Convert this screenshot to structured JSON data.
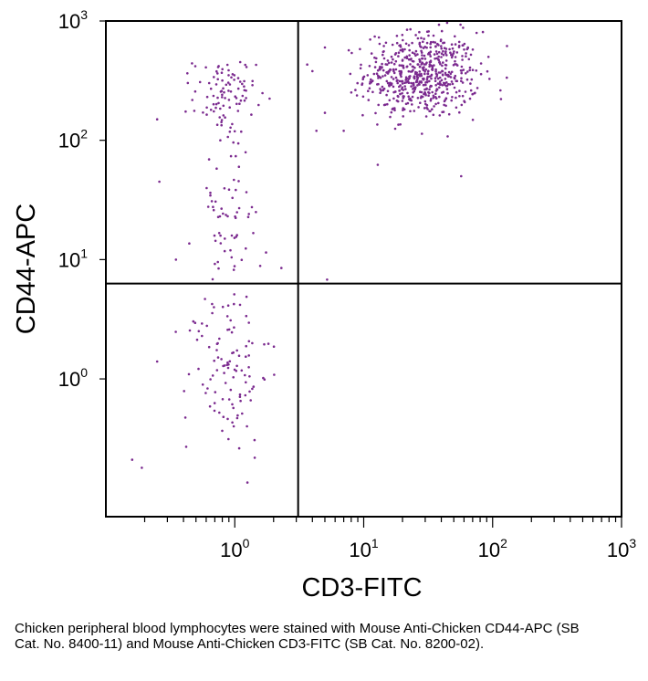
{
  "chart_data": {
    "type": "scatter",
    "xlabel": "CD3-FITC",
    "ylabel": "CD44-APC",
    "x_scale": "log",
    "y_scale": "log",
    "xlim": [
      0.1,
      1000
    ],
    "ylim": [
      0.07,
      1000
    ],
    "x_ticks": [
      {
        "value": 1,
        "base": "10",
        "exp": "0"
      },
      {
        "value": 10,
        "base": "10",
        "exp": "1"
      },
      {
        "value": 100,
        "base": "10",
        "exp": "2"
      },
      {
        "value": 1000,
        "base": "10",
        "exp": "3"
      }
    ],
    "y_ticks": [
      {
        "value": 1,
        "base": "10",
        "exp": "0"
      },
      {
        "value": 10,
        "base": "10",
        "exp": "1"
      },
      {
        "value": 100,
        "base": "10",
        "exp": "2"
      },
      {
        "value": 1000,
        "base": "10",
        "exp": "3"
      }
    ],
    "quadrant_gates": {
      "x": 3.1,
      "y": 6.3
    },
    "point_color": "#7b2a8f",
    "line_color": "#000000",
    "populations": [
      {
        "x_center_log": 1.45,
        "y_center_log": 2.55,
        "x_spread_log": 0.22,
        "y_spread_log": 0.18,
        "count": 620
      },
      {
        "x_center_log": -0.08,
        "y_center_log": 2.38,
        "x_spread_log": 0.12,
        "y_spread_log": 0.16,
        "count": 90
      },
      {
        "x_center_log": -0.05,
        "y_center_log": 1.35,
        "x_spread_log": 0.13,
        "y_spread_log": 0.45,
        "count": 80
      },
      {
        "x_center_log": -0.05,
        "y_center_log": 0.05,
        "x_spread_log": 0.16,
        "y_spread_log": 0.35,
        "count": 100
      }
    ],
    "outliers": [
      {
        "x": 0.16,
        "y": 0.21
      },
      {
        "x": 0.19,
        "y": 0.18
      },
      {
        "x": 0.25,
        "y": 1.4
      },
      {
        "x": 0.26,
        "y": 45
      },
      {
        "x": 0.25,
        "y": 150
      },
      {
        "x": 5.2,
        "y": 6.8
      },
      {
        "x": 5.0,
        "y": 600
      },
      {
        "x": 4.0,
        "y": 380
      },
      {
        "x": 4.3,
        "y": 120
      },
      {
        "x": 7.0,
        "y": 120
      },
      {
        "x": 57,
        "y": 50
      },
      {
        "x": 5.0,
        "y": 170
      },
      {
        "x": 0.42,
        "y": 0.27
      },
      {
        "x": 0.35,
        "y": 10
      },
      {
        "x": 2.3,
        "y": 8.5
      }
    ]
  },
  "caption": "Chicken peripheral blood lymphocytes were stained with Mouse Anti-Chicken CD44-APC (SB Cat. No. 8400-11) and Mouse Anti-Chicken CD3-FITC (SB Cat. No. 8200-02)."
}
